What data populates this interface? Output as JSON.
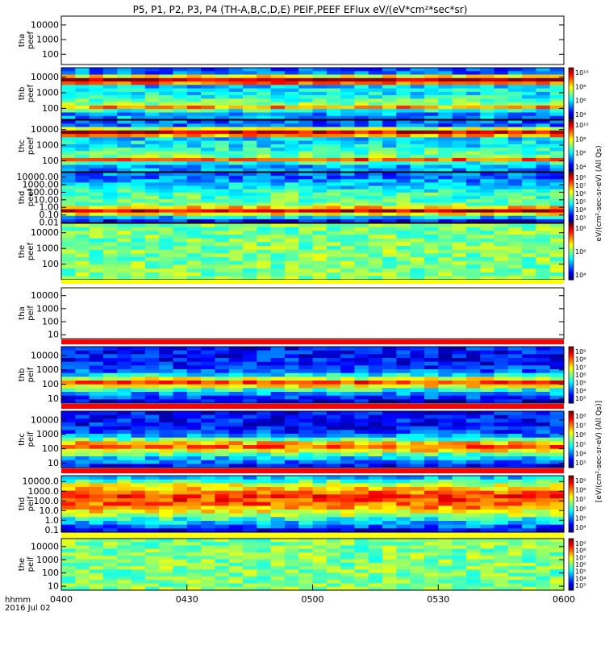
{
  "title": "P5, P1, P2, P3, P4 (TH-A,B,C,D,E) PEIF,PEEF EFlux eV/(eV*cm²*sec*sr)",
  "colorbar_label_top": "eV/(cm²-sec-sr-eV) (All Qs)",
  "colorbar_label_bottom": "[eV/(cm²-sec-sr-eV) (All Qs)]",
  "time_axis": {
    "ticks": [
      "0400",
      "0430",
      "0500",
      "0530",
      "0600"
    ],
    "range_minutes": [
      0,
      120
    ],
    "tick_minutes": [
      0,
      30,
      60,
      90,
      120
    ],
    "label_line1": "hhmm",
    "label_line2": "2016 Jul 02"
  },
  "chart_data": [
    {
      "type": "heatmap",
      "panel": "tha-peef",
      "ylabel_line1": "tha",
      "ylabel_line2": "peef",
      "ytick_labels": [
        "10000",
        "1000",
        "100"
      ],
      "ytick_values": [
        10000,
        1000,
        100
      ],
      "ylim": [
        20,
        40000
      ],
      "has_colorbar": false,
      "empty": true
    },
    {
      "type": "heatmap",
      "panel": "thb-peef",
      "ylabel_line1": "thb",
      "ylabel_line2": "peef",
      "ytick_labels": [
        "10000",
        "1000",
        "100"
      ],
      "ytick_values": [
        10000,
        1000,
        100
      ],
      "ylim": [
        20,
        40000
      ],
      "has_colorbar": true,
      "colorbar_ticks": [
        "10¹⁰",
        "10⁸",
        "10⁶",
        "10⁴"
      ],
      "profile": [
        -0.5,
        -0.5,
        -0.2,
        0.5,
        0.0,
        -0.1,
        -0.2,
        -0.3,
        -0.3,
        -0.4,
        0.6,
        1.0,
        0.3,
        -0.6,
        -0.6
      ]
    },
    {
      "type": "heatmap",
      "panel": "thc-peef",
      "ylabel_line1": "thc",
      "ylabel_line2": "peef",
      "ytick_labels": [
        "10000",
        "1000",
        "100"
      ],
      "ytick_values": [
        10000,
        1000,
        100
      ],
      "ylim": [
        20,
        40000
      ],
      "has_colorbar": true,
      "colorbar_ticks": [
        "10¹⁰",
        "10⁸",
        "10⁶",
        "10⁴"
      ],
      "profile": [
        -0.5,
        -0.5,
        -0.2,
        0.6,
        0.0,
        -0.1,
        -0.2,
        -0.3,
        -0.3,
        -0.4,
        0.5,
        0.9,
        0.2,
        -0.6,
        -0.6
      ]
    },
    {
      "type": "heatmap",
      "panel": "thd-peef",
      "ylabel_line1": "thd",
      "ylabel_line2": "peef",
      "ytick_labels": [
        "10000.00",
        "1000.00",
        "100.00",
        "10.00",
        "1.00",
        "0.10",
        "0.01"
      ],
      "ytick_values": [
        10000,
        1000,
        100,
        10,
        1,
        0.1,
        0.01
      ],
      "ylim": [
        0.01,
        40000
      ],
      "has_colorbar": true,
      "colorbar_ticks": [
        "10⁸",
        "10⁷",
        "10⁶",
        "10⁵",
        "10⁴",
        "10³"
      ],
      "profile": [
        -0.8,
        -0.4,
        0.3,
        0.9,
        0.4,
        0.0,
        -0.1,
        -0.1,
        -0.1,
        -0.2,
        -0.3,
        -0.4,
        -0.5,
        -0.6,
        -0.6
      ]
    },
    {
      "type": "heatmap",
      "panel": "the-peef",
      "ylabel_line1": "the",
      "ylabel_line2": "peef",
      "ytick_labels": [
        "10000",
        "1000",
        "100"
      ],
      "ytick_values": [
        10000,
        1000,
        100
      ],
      "ylim": [
        10,
        40000
      ],
      "has_colorbar": true,
      "colorbar_ticks": [
        "10⁸",
        "10⁶",
        "10⁴"
      ],
      "profile": [
        0.0,
        0.0,
        0.0,
        0.0,
        0.0,
        0.0,
        0.0,
        0.0,
        0.0,
        0.0,
        0.0,
        0.0,
        0.0,
        0.0,
        0.0
      ]
    },
    {
      "type": "heatmap",
      "panel": "tha-peif",
      "ylabel_line1": "tha",
      "ylabel_line2": "peif",
      "ytick_labels": [
        "10000",
        "1000",
        "100",
        "10"
      ],
      "ytick_values": [
        10000,
        1000,
        100,
        10
      ],
      "ylim": [
        5,
        40000
      ],
      "has_colorbar": false,
      "empty": true
    },
    {
      "type": "heatmap",
      "panel": "thb-peif",
      "ylabel_line1": "thb",
      "ylabel_line2": "peif",
      "ytick_labels": [
        "10000",
        "1000",
        "100",
        "10"
      ],
      "ytick_values": [
        10000,
        1000,
        100,
        10
      ],
      "ylim": [
        5,
        40000
      ],
      "has_colorbar": true,
      "colorbar_ticks": [
        "10⁹",
        "10⁸",
        "10⁷",
        "10⁶",
        "10⁵",
        "10⁴",
        "10³"
      ],
      "profile": [
        -0.9,
        -0.7,
        -0.5,
        -0.2,
        0.3,
        0.7,
        0.2,
        -0.3,
        -0.6,
        -0.7,
        -0.8,
        -0.8,
        -0.8,
        -0.8,
        -0.8
      ]
    },
    {
      "type": "heatmap",
      "panel": "thc-peif",
      "ylabel_line1": "thc",
      "ylabel_line2": "peif",
      "ytick_labels": [
        "10000",
        "1000",
        "100",
        "10"
      ],
      "ytick_values": [
        10000,
        1000,
        100,
        10
      ],
      "ylim": [
        5,
        40000
      ],
      "has_colorbar": true,
      "colorbar_ticks": [
        "10⁸",
        "10⁷",
        "10⁶",
        "10⁵",
        "10⁴",
        "10³"
      ],
      "profile": [
        -0.8,
        -0.6,
        -0.4,
        -0.1,
        0.3,
        0.6,
        0.4,
        -0.1,
        -0.5,
        -0.7,
        -0.8,
        -0.8,
        -0.8,
        -0.8,
        -0.8
      ]
    },
    {
      "type": "heatmap",
      "panel": "thd-peif",
      "ylabel_line1": "thd",
      "ylabel_line2": "peif",
      "ytick_labels": [
        "10000.0",
        "1000.0",
        "100.0",
        "10.0",
        "1.0",
        "0.1"
      ],
      "ytick_values": [
        10000,
        1000,
        100,
        10,
        1,
        0.1
      ],
      "ylim": [
        0.06,
        40000
      ],
      "has_colorbar": true,
      "colorbar_ticks": [
        "10⁹",
        "10⁸",
        "10⁷",
        "10⁶",
        "10⁵",
        "10⁴"
      ],
      "profile": [
        -0.8,
        -0.6,
        -0.4,
        -0.2,
        0.1,
        0.3,
        0.5,
        0.6,
        0.7,
        0.7,
        0.6,
        0.4,
        0.2,
        -0.1,
        -0.4
      ]
    },
    {
      "type": "heatmap",
      "panel": "the-peif",
      "ylabel_line1": "the",
      "ylabel_line2": "peif",
      "ytick_labels": [
        "10000",
        "1000",
        "100",
        "10"
      ],
      "ytick_values": [
        10000,
        1000,
        100,
        10
      ],
      "ylim": [
        5,
        40000
      ],
      "has_colorbar": true,
      "colorbar_ticks": [
        "10⁹",
        "10⁸",
        "10⁷",
        "10⁶",
        "10⁵",
        "10⁴",
        "10³"
      ],
      "profile": [
        0.0,
        0.0,
        0.0,
        0.0,
        0.0,
        0.0,
        0.0,
        0.0,
        0.0,
        0.0,
        0.0,
        0.0,
        0.0,
        0.0,
        0.0
      ]
    }
  ]
}
